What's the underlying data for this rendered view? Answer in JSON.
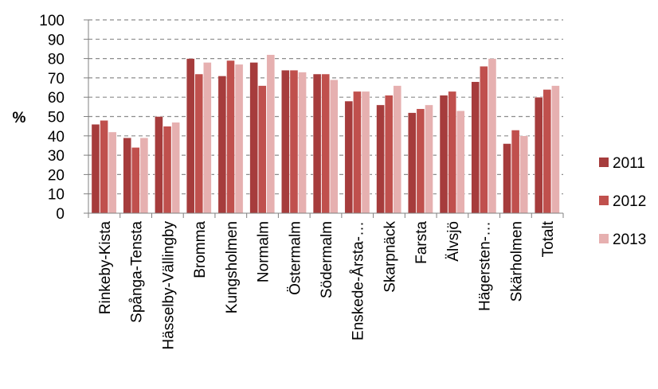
{
  "chart_data": {
    "type": "bar",
    "ylabel": "%",
    "ylim": [
      0,
      100
    ],
    "ytick_step": 10,
    "grid": true,
    "legend_position": "right",
    "categories": [
      "Rinkeby-Kista",
      "Spånga-Tensta",
      "Hässelby-Vällingby",
      "Bromma",
      "Kungsholmen",
      "Normalm",
      "Östermalm",
      "Södermalm",
      "Enskede-Årsta-…",
      "Skarpnäck",
      "Farsta",
      "Älvsjö",
      "Hägersten-…",
      "Skärholmen",
      "Totalt"
    ],
    "series": [
      {
        "name": "2011",
        "color": "#a63c3c",
        "values": [
          46,
          39,
          50,
          80,
          71,
          78,
          74,
          72,
          58,
          56,
          52,
          61,
          68,
          36,
          60
        ]
      },
      {
        "name": "2012",
        "color": "#c0504d",
        "values": [
          48,
          34,
          45,
          72,
          79,
          66,
          74,
          72,
          63,
          61,
          54,
          63,
          76,
          43,
          64
        ]
      },
      {
        "name": "2013",
        "color": "#e6b0b0",
        "values": [
          42,
          39,
          47,
          78,
          77,
          82,
          73,
          69,
          63,
          66,
          56,
          53,
          80,
          40,
          66
        ]
      }
    ]
  }
}
